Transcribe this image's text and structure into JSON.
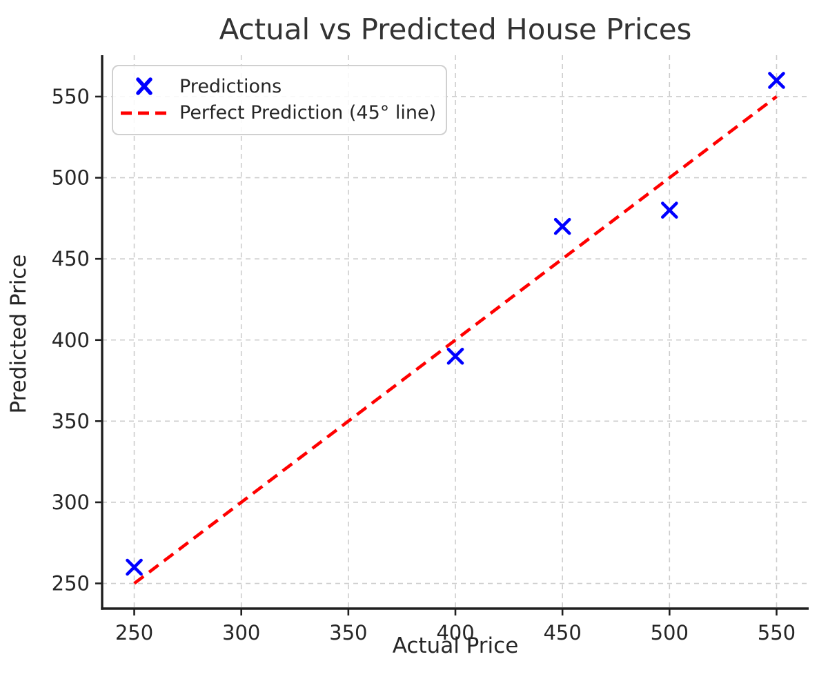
{
  "chart_data": {
    "type": "scatter",
    "title": "Actual vs Predicted House Prices",
    "xlabel": "Actual Price",
    "ylabel": "Predicted Price",
    "xlim": [
      235,
      565
    ],
    "ylim": [
      234.5,
      575.5
    ],
    "xticks": [
      250,
      300,
      350,
      400,
      450,
      500,
      550
    ],
    "yticks": [
      250,
      300,
      350,
      400,
      450,
      500,
      550
    ],
    "grid": true,
    "legend_position": "upper-left",
    "series": [
      {
        "name": "Predictions",
        "type": "scatter",
        "marker": "x",
        "color": "#0000ff",
        "points": [
          [
            250,
            260
          ],
          [
            400,
            390
          ],
          [
            450,
            470
          ],
          [
            500,
            480
          ],
          [
            550,
            560
          ]
        ]
      },
      {
        "name": "Perfect Prediction (45° line)",
        "type": "line",
        "style": "dashed",
        "color": "#ff0000",
        "points": [
          [
            250,
            250
          ],
          [
            550,
            550
          ]
        ]
      }
    ],
    "colors": {
      "grid": "#cccccc",
      "axis": "#1f1f1f",
      "tick_text": "#262626",
      "background": "#ffffff"
    }
  }
}
